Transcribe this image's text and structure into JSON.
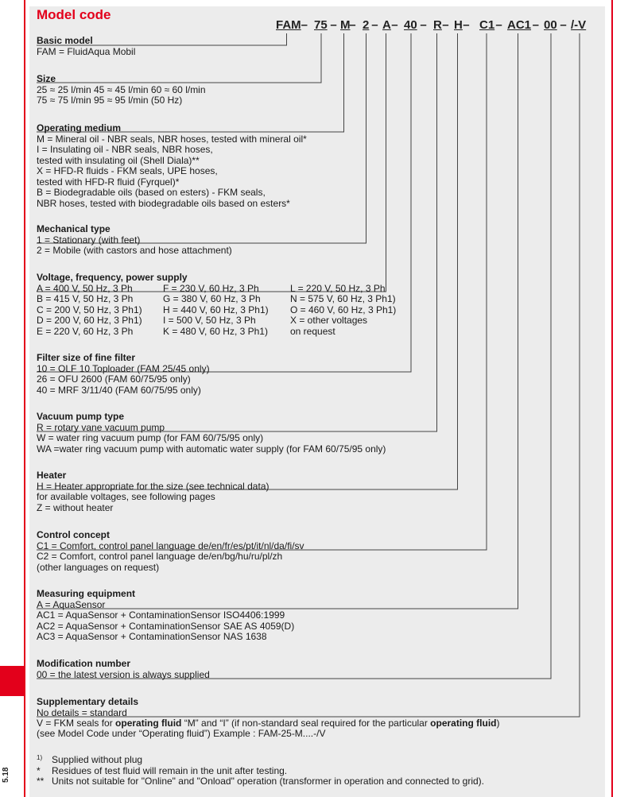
{
  "title": "Model code",
  "page_number": "5.18",
  "code": [
    "FAM",
    "75",
    "M",
    "2",
    "A",
    "40",
    "R",
    "H",
    "C1",
    "AC1",
    "00",
    "/-V"
  ],
  "sep": "–",
  "sections": {
    "basic": {
      "title": "Basic model",
      "lines": [
        "FAM =  FluidAqua Mobil"
      ]
    },
    "size": {
      "title": "Size",
      "lines": [
        "25 ≈ 25 l/min    45 ≈ 45 l/min   60 ≈ 60 l/min",
        "75 ≈ 75 l/min    95 ≈ 95 l/min            (50 Hz)"
      ]
    },
    "medium": {
      "title": "Operating medium",
      "lines": [
        "M  = Mineral oil - NBR seals, NBR hoses, tested with mineral oil*",
        "I    = Insulating oil - NBR seals, NBR hoses,",
        "        tested with insulating oil (Shell Diala)**",
        "X   = HFD-R fluids - FKM seals, UPE hoses,",
        "        tested with HFD-R fluid (Fyrquel)*",
        "B   = Biodegradable oils (based on esters) - FKM seals,",
        "        NBR hoses, tested with biodegradable oils based on esters*"
      ]
    },
    "mech": {
      "title": "Mechanical type",
      "lines": [
        "1   = Stationary (with feet)",
        "2   = Mobile (with castors and hose attachment)"
      ]
    },
    "voltage": {
      "title": "Voltage, frequency, power supply",
      "col1": [
        "A  = 400 V, 50 Hz, 3 Ph",
        "B  = 415 V, 50 Hz, 3 Ph",
        "C  = 200 V, 50 Hz, 3 Ph1)",
        "D  = 200 V, 60 Hz, 3 Ph1)",
        "E  = 220 V, 60 Hz, 3 Ph"
      ],
      "col2": [
        "F  =    230 V, 60 Hz, 3 Ph",
        "G  =    380 V, 60 Hz, 3 Ph",
        "H  =    440 V, 60 Hz, 3 Ph1)",
        "I    =    500 V, 50 Hz, 3 Ph",
        "K  =    480 V, 60 Hz, 3 Ph1)"
      ],
      "col3": [
        "L   =  220 V, 50 Hz, 3 Ph",
        "N   =  575 V, 60 Hz, 3 Ph1)",
        "O   =  460 V, 60 Hz, 3 Ph1)",
        "X   =  other voltages",
        "          on request"
      ]
    },
    "filter": {
      "title": "Filter size of fine filter",
      "lines": [
        "10 = OLF 10 Toploader (FAM 25/45 only)",
        "26 = OFU 2600 (FAM 60/75/95 only)",
        "40 = MRF 3/11/40 (FAM 60/75/95 only)"
      ]
    },
    "vacuum": {
      "title": "Vacuum pump type",
      "lines": [
        "R    = rotary vane vacuum pump",
        "W   = water ring vacuum pump (for FAM 60/75/95 only)",
        "WA =water ring vacuum pump with automatic water supply (for FAM 60/75/95 only)"
      ]
    },
    "heater": {
      "title": "Heater",
      "lines": [
        "H   = Heater appropriate for the size (see technical data)",
        "        for available voltages, see following pages",
        "Z   = without heater"
      ]
    },
    "control": {
      "title": "Control concept",
      "lines": [
        "C1 = Comfort, control panel language de/en/fr/es/pt/it/nl/da/fi/sv",
        "C2 = Comfort, control panel language de/en/bg/hu/ru/pl/zh",
        "(other languages on request)"
      ]
    },
    "measuring": {
      "title": "Measuring equipment",
      "lines": [
        "A       =  AquaSensor",
        "AC1  =  AquaSensor + ContaminationSensor   ISO4406:1999",
        "AC2  =  AquaSensor + ContaminationSensor   SAE AS 4059(D)",
        "AC3  =  AquaSensor + ContaminationSensor   NAS 1638"
      ]
    },
    "modification": {
      "title": "Modification number",
      "lines": [
        "00  = the latest version is always supplied"
      ]
    },
    "supplementary": {
      "title": "Supplementary details",
      "lines": [
        "No details = standard"
      ],
      "v_parts": [
        "V   =  FKM seals for ",
        "operating fluid",
        " “M” and “I” (if non-standard seal required for the particular ",
        "operating fluid",
        ")"
      ],
      "v_line2": "        (see Model Code under “Operating fluid”) Example : FAM-25-M....-/V"
    }
  },
  "footnotes": [
    {
      "mark": "1)",
      "text": "Supplied without plug"
    },
    {
      "mark": "*",
      "text": "Residues of test fluid will remain in the unit after testing."
    },
    {
      "mark": "**",
      "text": "Units not suitable for \"Online\" and \"Onload\" operation (transformer in operation and connected to grid)."
    }
  ]
}
